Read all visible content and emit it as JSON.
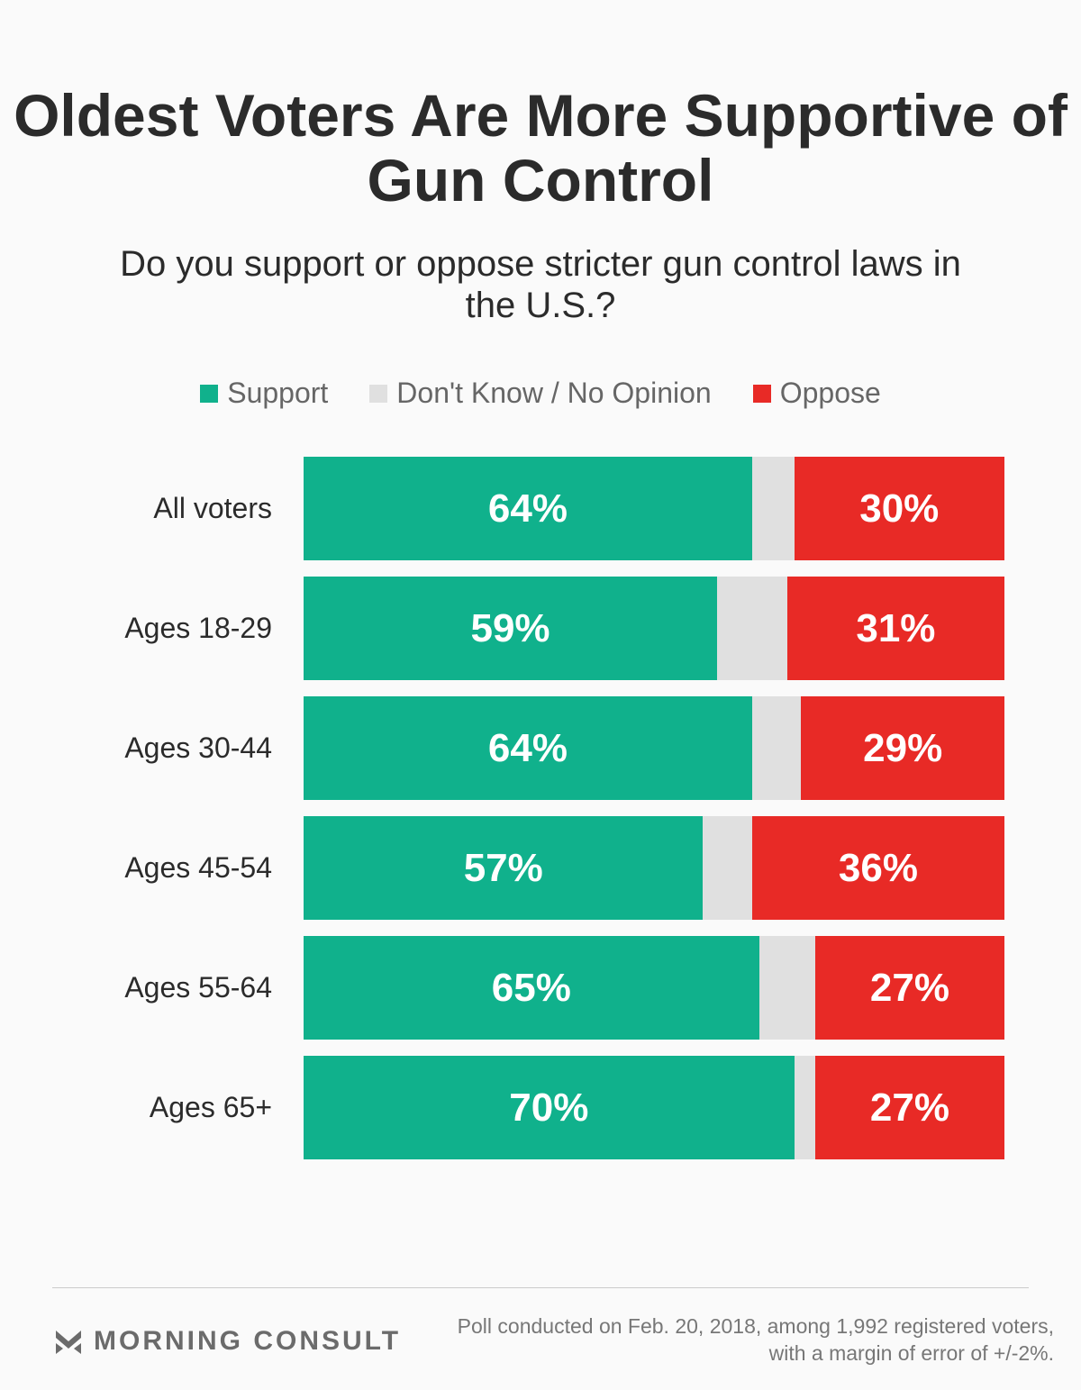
{
  "chart_data": {
    "type": "bar",
    "orientation": "horizontal-stacked",
    "title": "Oldest Voters Are More Supportive of Gun Control",
    "subtitle": "Do you support or oppose stricter gun control laws in the U.S.?",
    "categories": [
      "All voters",
      "Ages 18-29",
      "Ages 30-44",
      "Ages 45-54",
      "Ages 55-64",
      "Ages 65+"
    ],
    "series": [
      {
        "name": "Support",
        "color": "#10b18c",
        "values": [
          64,
          59,
          64,
          57,
          65,
          70
        ],
        "labels": [
          "64%",
          "59%",
          "64%",
          "57%",
          "65%",
          "70%"
        ]
      },
      {
        "name": "Don't Know / No Opinion",
        "color": "#e0e0e0",
        "values": [
          6,
          10,
          7,
          7,
          8,
          3
        ]
      },
      {
        "name": "Oppose",
        "color": "#e82a26",
        "values": [
          30,
          31,
          29,
          36,
          27,
          27
        ],
        "labels": [
          "30%",
          "31%",
          "29%",
          "36%",
          "27%",
          "27%"
        ]
      }
    ],
    "legend_position": "top-center",
    "xlim": [
      0,
      100
    ]
  },
  "footer": {
    "brand": "MORNING CONSULT",
    "note": "Poll conducted on Feb. 20, 2018, among 1,992 registered voters, with a margin of error of +/-2%."
  }
}
